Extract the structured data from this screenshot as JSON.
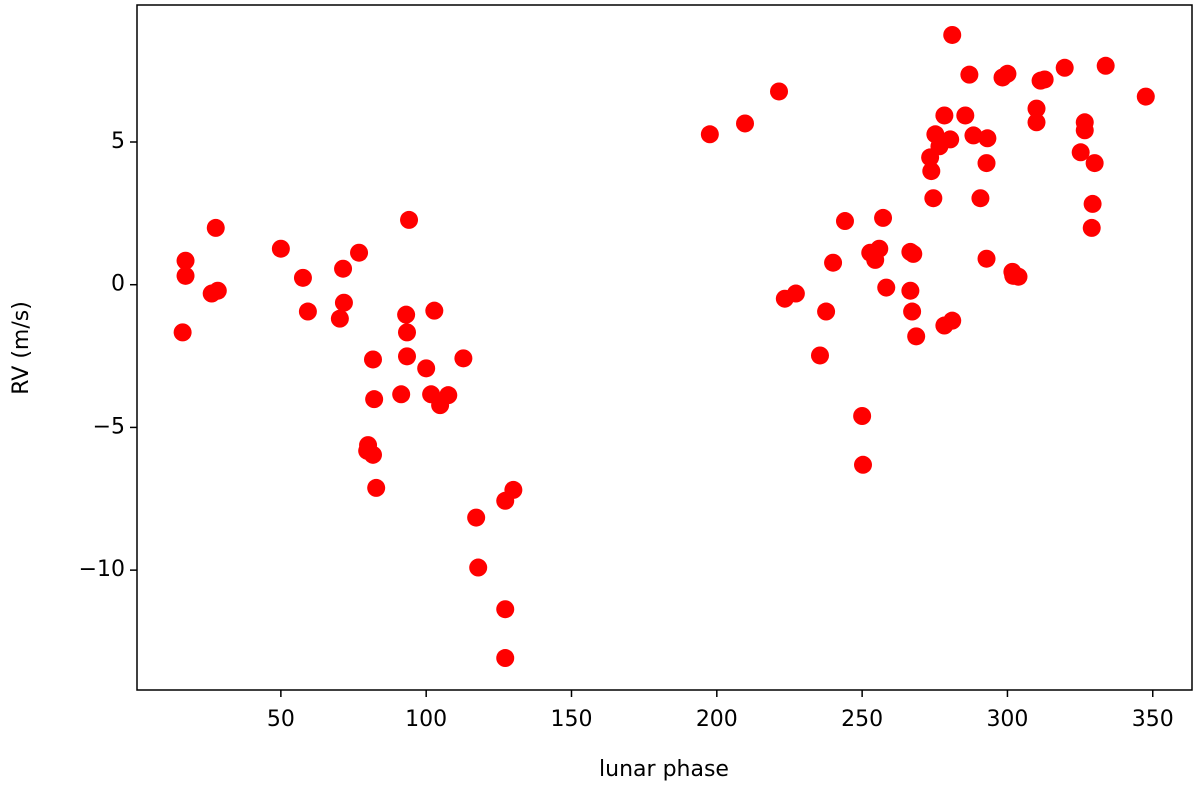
{
  "chart_data": {
    "type": "scatter",
    "x_label": "lunar phase",
    "y_label": "RV (m/s)",
    "color": "#ff0000",
    "xlim": [
      0.5,
      363.5
    ],
    "ylim": [
      -14.2,
      9.8
    ],
    "xticks": [
      50,
      100,
      150,
      200,
      250,
      300,
      350
    ],
    "yticks": [
      {
        "value": -10,
        "label": "−10"
      },
      {
        "value": -5,
        "label": "−5"
      },
      0,
      5
    ],
    "x": [
      16.2,
      17.2,
      17.2,
      27.6,
      26.2,
      28.3,
      50,
      57.6,
      59.3,
      71.4,
      71.7,
      70.3,
      76.9,
      81.7,
      82.1,
      80,
      79.7,
      81.7,
      82.8,
      94.1,
      93.1,
      93.4,
      93.4,
      91.4,
      100,
      102.8,
      101.7,
      104.8,
      107.6,
      112.8,
      117.2,
      117.9,
      127.2,
      130,
      127.2,
      127.2,
      197.6,
      209.7,
      221.4,
      223.4,
      227.2,
      235.5,
      237.6,
      240,
      244.1,
      250,
      250.3,
      252.8,
      254.5,
      255.9,
      257.2,
      258.3,
      266.6,
      267.6,
      266.6,
      267.2,
      268.6,
      273.4,
      273.8,
      274.5,
      275.2,
      276.6,
      278.3,
      281,
      280.3,
      278.3,
      281,
      285.5,
      286.9,
      288.3,
      293.1,
      292.8,
      290.7,
      292.8,
      298.3,
      300,
      301.7,
      302,
      303.8,
      310,
      310,
      311.4,
      312.8,
      319.7,
      325.2,
      326.6,
      326.6,
      330,
      329.3,
      329,
      333.8,
      347.6
    ],
    "values": [
      -1.67,
      0.84,
      0.31,
      1.99,
      -0.31,
      -0.21,
      1.26,
      0.24,
      -0.94,
      0.56,
      -0.63,
      -1.19,
      1.12,
      -2.62,
      -4.01,
      -5.62,
      -5.82,
      -5.96,
      -7.12,
      2.27,
      -1.05,
      -1.67,
      -2.51,
      -3.84,
      -2.93,
      -0.91,
      -3.84,
      -4.22,
      -3.87,
      -2.58,
      -8.16,
      -9.91,
      -7.57,
      -7.19,
      -11.37,
      -13.08,
      5.27,
      5.65,
      6.77,
      -0.49,
      -0.31,
      -2.48,
      -0.94,
      0.77,
      2.23,
      -4.6,
      -6.31,
      1.12,
      0.87,
      1.26,
      2.34,
      -0.1,
      1.15,
      1.08,
      -0.21,
      -0.94,
      -1.81,
      4.46,
      3.98,
      3.03,
      5.27,
      4.85,
      5.93,
      8.75,
      5.09,
      -1.43,
      -1.26,
      5.93,
      7.36,
      5.23,
      5.13,
      4.26,
      3.03,
      0.91,
      7.26,
      7.39,
      0.45,
      0.31,
      0.28,
      6.17,
      5.69,
      7.15,
      7.19,
      7.6,
      4.64,
      5.69,
      5.41,
      4.26,
      2.83,
      1.99,
      7.67,
      6.59
    ]
  }
}
